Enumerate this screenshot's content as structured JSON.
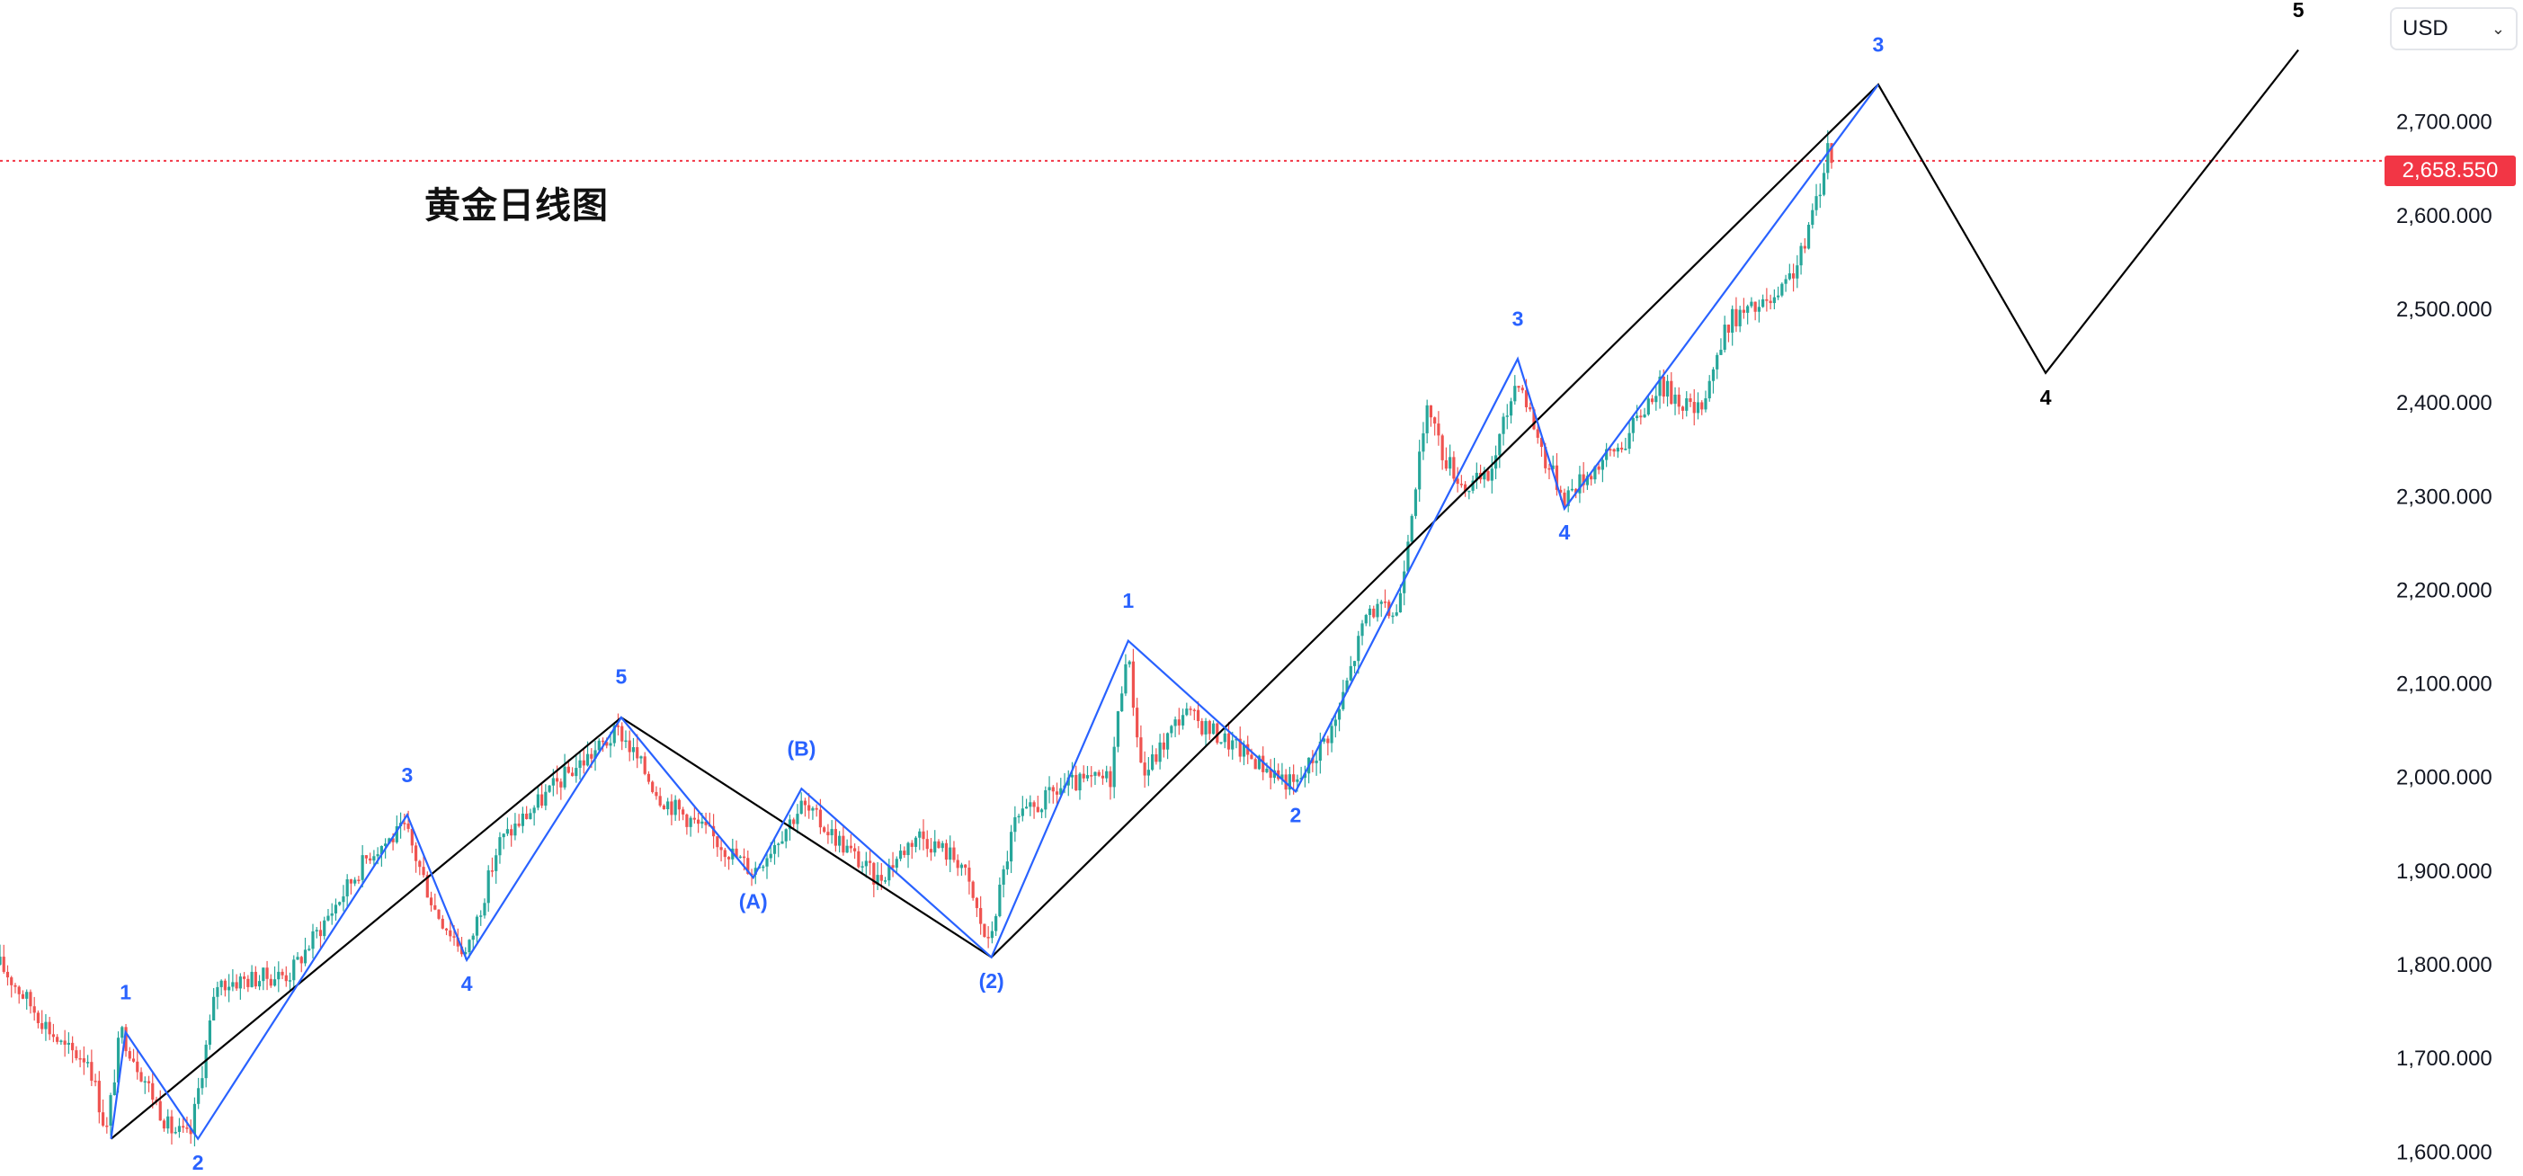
{
  "chart_title": "黄金日线图",
  "currency": {
    "label": "USD",
    "chevron_icon": "chevron-down-icon"
  },
  "last_price": {
    "label": "2,658.550",
    "value": 2658.55,
    "color": "#f23645"
  },
  "colors": {
    "up": "#26a69a",
    "down": "#ef5350",
    "wave_blue": "#2962ff",
    "wave_black": "#000000",
    "price_line": "#f23645"
  },
  "chart_data": {
    "type": "candlestick",
    "title": "黄金日线图",
    "ylim": [
      1582,
      2790
    ],
    "y_ticks": [
      {
        "value": 1600,
        "label": "1,600.000"
      },
      {
        "value": 1700,
        "label": "1,700.000"
      },
      {
        "value": 1800,
        "label": "1,800.000"
      },
      {
        "value": 1900,
        "label": "1,900.000"
      },
      {
        "value": 2000,
        "label": "2,000.000"
      },
      {
        "value": 2100,
        "label": "2,100.000"
      },
      {
        "value": 2200,
        "label": "2,200.000"
      },
      {
        "value": 2300,
        "label": "2,300.000"
      },
      {
        "value": 2400,
        "label": "2,400.000"
      },
      {
        "value": 2500,
        "label": "2,500.000"
      },
      {
        "value": 2600,
        "label": "2,600.000"
      },
      {
        "value": 2700,
        "label": "2,700.000"
      }
    ],
    "bar_count": 480,
    "price_path": [
      [
        0,
        1800
      ],
      [
        20,
        1755
      ],
      [
        40,
        1710
      ],
      [
        55,
        1700
      ],
      [
        66,
        1620
      ],
      [
        75,
        1730
      ],
      [
        105,
        1625
      ],
      [
        118,
        1615
      ],
      [
        135,
        1780
      ],
      [
        180,
        1790
      ],
      [
        230,
        1920
      ],
      [
        252,
        1945
      ],
      [
        270,
        1860
      ],
      [
        290,
        1810
      ],
      [
        310,
        1930
      ],
      [
        350,
        2000
      ],
      [
        385,
        2050
      ],
      [
        410,
        1980
      ],
      [
        440,
        1940
      ],
      [
        468,
        1900
      ],
      [
        498,
        1970
      ],
      [
        520,
        1935
      ],
      [
        545,
        1890
      ],
      [
        570,
        1940
      ],
      [
        597,
        1910
      ],
      [
        614,
        1820
      ],
      [
        630,
        1950
      ],
      [
        660,
        1990
      ],
      [
        690,
        2000
      ],
      [
        700,
        2140
      ],
      [
        710,
        2000
      ],
      [
        735,
        2070
      ],
      [
        770,
        2030
      ],
      [
        805,
        1990
      ],
      [
        830,
        2060
      ],
      [
        850,
        2180
      ],
      [
        868,
        2175
      ],
      [
        878,
        2300
      ],
      [
        888,
        2400
      ],
      [
        895,
        2350
      ],
      [
        910,
        2310
      ],
      [
        925,
        2320
      ],
      [
        943,
        2430
      ],
      [
        960,
        2340
      ],
      [
        972,
        2300
      ],
      [
        990,
        2330
      ],
      [
        1010,
        2360
      ],
      [
        1030,
        2420
      ],
      [
        1055,
        2390
      ],
      [
        1075,
        2490
      ],
      [
        1105,
        2510
      ],
      [
        1120,
        2560
      ],
      [
        1132,
        2640
      ],
      [
        1136,
        2680
      ],
      [
        1138,
        2655
      ]
    ],
    "wave_lines": [
      {
        "color": "#000000",
        "points": [
          [
            69,
            1614
          ],
          [
            386,
            2064
          ],
          [
            616,
            1808
          ],
          [
            1167,
            2740
          ],
          [
            1271,
            2432
          ],
          [
            1428,
            2777
          ]
        ]
      },
      {
        "color": "#2962ff",
        "points": [
          [
            69,
            1614
          ],
          [
            78,
            1728
          ],
          [
            123,
            1614
          ],
          [
            253,
            1960
          ],
          [
            290,
            1805
          ],
          [
            386,
            2064
          ],
          [
            468,
            1893
          ],
          [
            498,
            1988
          ],
          [
            616,
            1808
          ],
          [
            701,
            2146
          ],
          [
            805,
            1985
          ],
          [
            943,
            2447
          ],
          [
            972,
            2287
          ],
          [
            1167,
            2740
          ]
        ]
      }
    ],
    "wave_labels": [
      {
        "text": "1",
        "x": 78,
        "price": 1763,
        "color": "blue"
      },
      {
        "text": "2",
        "x": 123,
        "price": 1581,
        "color": "blue"
      },
      {
        "text": "3",
        "x": 253,
        "price": 1995,
        "color": "blue"
      },
      {
        "text": "4",
        "x": 290,
        "price": 1772,
        "color": "blue"
      },
      {
        "text": "5",
        "x": 386,
        "price": 2100,
        "color": "blue"
      },
      {
        "text": "(A)",
        "x": 468,
        "price": 1860,
        "color": "blue"
      },
      {
        "text": "(B)",
        "x": 498,
        "price": 2023,
        "color": "blue"
      },
      {
        "text": "(2)",
        "x": 616,
        "price": 1775,
        "color": "blue"
      },
      {
        "text": "1",
        "x": 701,
        "price": 2181,
        "color": "blue"
      },
      {
        "text": "2",
        "x": 805,
        "price": 1952,
        "color": "blue"
      },
      {
        "text": "3",
        "x": 943,
        "price": 2482,
        "color": "blue"
      },
      {
        "text": "4",
        "x": 972,
        "price": 2254,
        "color": "blue"
      },
      {
        "text": "3",
        "x": 1167,
        "price": 2775,
        "color": "blue"
      },
      {
        "text": "4",
        "x": 1271,
        "price": 2398,
        "color": "black"
      },
      {
        "text": "5",
        "x": 1428,
        "price": 2812,
        "color": "black"
      }
    ]
  }
}
